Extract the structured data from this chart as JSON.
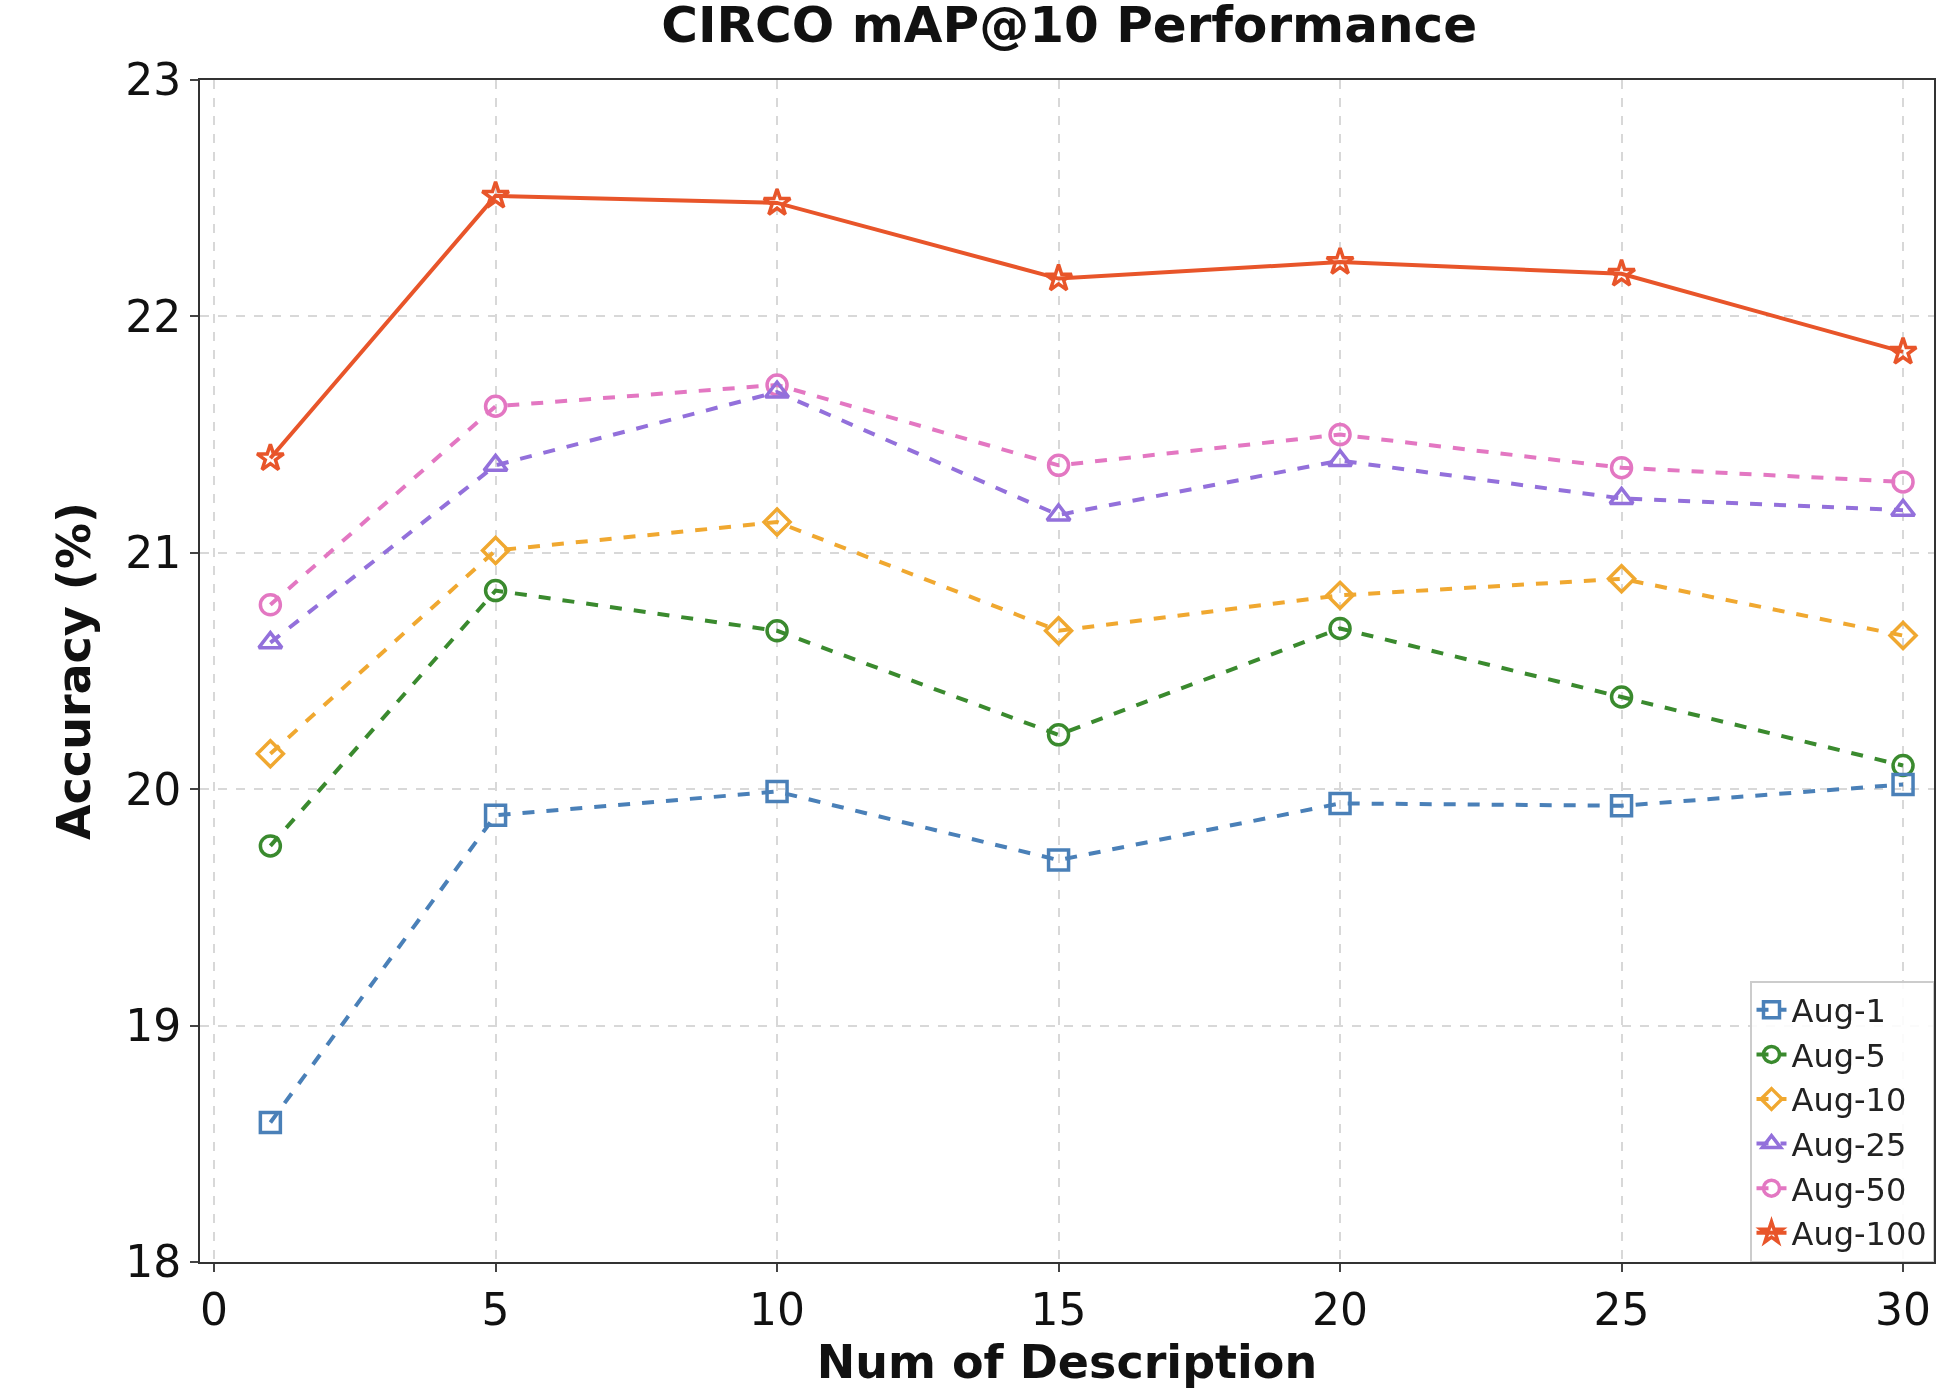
{
  "chart_data": {
    "type": "line",
    "title": "CIRCO mAP@10 Performance",
    "xlabel": "Num of Description",
    "ylabel": "Accuracy (%)",
    "x": [
      1,
      5,
      10,
      15,
      20,
      25,
      30
    ],
    "series": [
      {
        "name": "Aug-1",
        "color": "#4a80b8",
        "marker": "square",
        "line_style": "dashed",
        "values": [
          18.59,
          19.89,
          19.99,
          19.7,
          19.94,
          19.93,
          20.02
        ]
      },
      {
        "name": "Aug-5",
        "color": "#3a8a2e",
        "marker": "circle",
        "line_style": "dashed",
        "values": [
          19.76,
          20.84,
          20.67,
          20.23,
          20.68,
          20.39,
          20.1
        ]
      },
      {
        "name": "Aug-10",
        "color": "#f0a830",
        "marker": "diamond",
        "line_style": "dashed",
        "values": [
          20.15,
          21.01,
          21.13,
          20.67,
          20.82,
          20.89,
          20.65
        ]
      },
      {
        "name": "Aug-25",
        "color": "#9370db",
        "marker": "triangle",
        "line_style": "dashed",
        "values": [
          20.62,
          21.37,
          21.68,
          21.16,
          21.39,
          21.23,
          21.18
        ]
      },
      {
        "name": "Aug-50",
        "color": "#e377c2",
        "marker": "circle",
        "line_style": "dashed",
        "values": [
          20.78,
          21.62,
          21.71,
          21.37,
          21.5,
          21.36,
          21.3
        ]
      },
      {
        "name": "Aug-100",
        "color": "#e8552a",
        "marker": "star",
        "line_style": "solid",
        "values": [
          21.4,
          22.51,
          22.48,
          22.16,
          22.23,
          22.18,
          21.85
        ]
      }
    ],
    "xlim": [
      -0.25,
      30.55
    ],
    "xticks": [
      0,
      5,
      10,
      15,
      20,
      25,
      30
    ],
    "ylim": [
      18,
      23
    ],
    "yticks": [
      18,
      19,
      20,
      21,
      22,
      23
    ],
    "grid": true,
    "legend": "bottom right"
  }
}
